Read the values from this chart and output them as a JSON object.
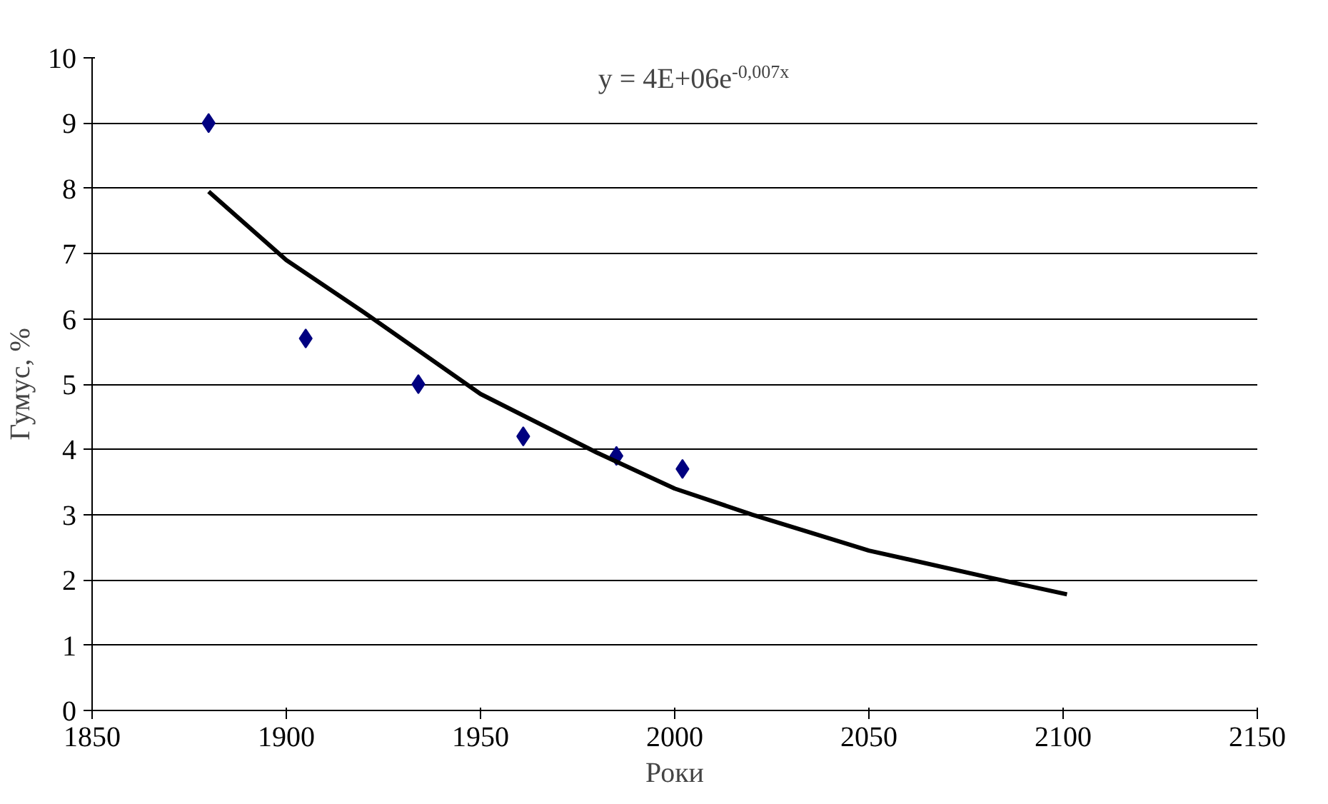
{
  "chart_data": {
    "type": "scatter",
    "title": "y = 4E+06e$^{-0,007x}$",
    "xlabel": "Роки",
    "ylabel": "Гумус, %",
    "x": [
      1880,
      1905,
      1934,
      1961,
      1985,
      2002
    ],
    "series": [
      {
        "color": "#000080",
        "values": [
          9.0,
          5.7,
          5.0,
          4.2,
          3.9,
          3.7
        ],
        "marker": "diamond"
      },
      {
        "type": "line",
        "color": "#000000",
        "x": [
          1880,
          1900,
          1920,
          1950,
          1980,
          2000,
          2020,
          2050,
          2080,
          2101
        ],
        "values": [
          7.95,
          6.9,
          6.1,
          4.85,
          3.95,
          3.4,
          3.0,
          2.45,
          2.05,
          1.78
        ],
        "marker": "none",
        "line_style": "solid"
      }
    ],
    "xlim": [
      1850,
      2150
    ],
    "xticks": [
      1850,
      1900,
      1950,
      2000,
      2050,
      2100,
      2150
    ],
    "ylim": [
      0,
      10
    ],
    "yticks": [
      0,
      1,
      2,
      3,
      4,
      5,
      6,
      7,
      8,
      9,
      10
    ],
    "grid": "y"
  }
}
